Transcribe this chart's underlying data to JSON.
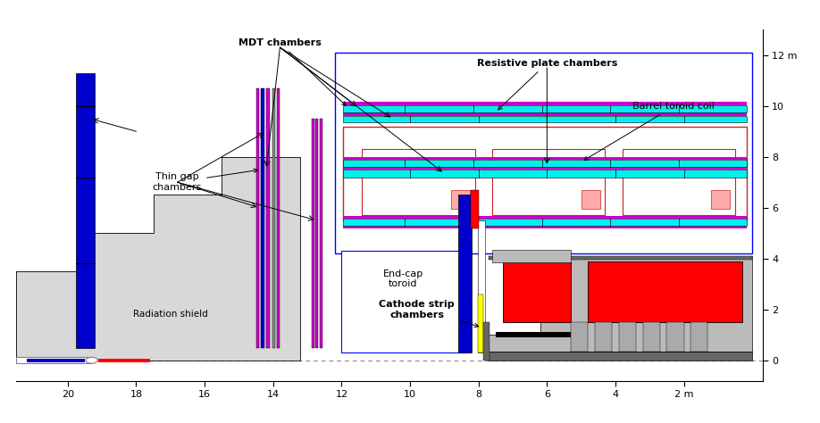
{
  "colors": {
    "cyan": "#00EFEF",
    "magenta": "#CC00CC",
    "blue": "#0000CC",
    "red": "#FF0000",
    "dark_gray": "#666666",
    "mid_gray": "#999999",
    "light_gray": "#BBBBBB",
    "lighter_gray": "#D8D8D8",
    "lightest_gray": "#E8E8E8",
    "white": "#FFFFFF",
    "black": "#000000",
    "yellow": "#FFFF00",
    "red_outline": "#CC2222",
    "pink": "#FFAAAA",
    "navy": "#000088"
  },
  "xlim": [
    21.5,
    -0.3
  ],
  "ylim": [
    -0.8,
    13.0
  ],
  "xticks": [
    20,
    18,
    16,
    14,
    12,
    10,
    8,
    6,
    4,
    2
  ],
  "xticklabels": [
    "20",
    "18",
    "16",
    "14",
    "12",
    "10",
    "8",
    "6",
    "4",
    "2 m"
  ],
  "yticks": [
    0,
    2,
    4,
    6,
    8,
    10,
    12
  ],
  "yticklabels": [
    "0",
    "2",
    "4",
    "6",
    "8",
    "10",
    "12 m"
  ]
}
